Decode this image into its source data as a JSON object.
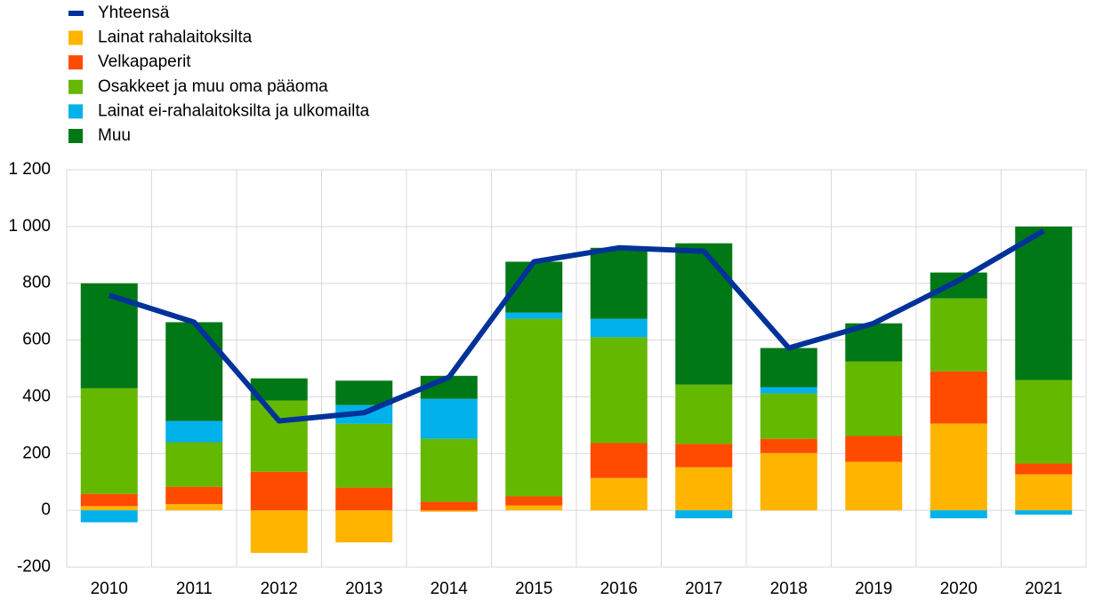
{
  "chart_data": {
    "type": "bar",
    "stacked": true,
    "categories": [
      "2010",
      "2011",
      "2012",
      "2013",
      "2014",
      "2015",
      "2016",
      "2017",
      "2018",
      "2019",
      "2020",
      "2021"
    ],
    "series": [
      {
        "name": "Yhteensä",
        "type": "line",
        "color": "#003299",
        "values": [
          758,
          663,
          315,
          344,
          469,
          876,
          925,
          913,
          572,
          659,
          810,
          985
        ]
      },
      {
        "name": "Lainat rahalaitoksilta",
        "color": "#ffb400",
        "values": [
          15,
          22,
          -150,
          -113,
          -5,
          17,
          114,
          152,
          202,
          171,
          306,
          127
        ]
      },
      {
        "name": "Velkapaperit",
        "color": "#ff4b00",
        "values": [
          43,
          61,
          136,
          80,
          30,
          32,
          123,
          82,
          50,
          91,
          184,
          38
        ]
      },
      {
        "name": "Osakkeet ja muu oma pääoma",
        "color": "#65b800",
        "values": [
          372,
          157,
          251,
          225,
          222,
          626,
          373,
          209,
          160,
          263,
          257,
          294
        ]
      },
      {
        "name": "Lainat ei-rahalaitoksilta ja ulkomailta",
        "color": "#00b1ea",
        "values": [
          -42,
          75,
          0,
          66,
          141,
          22,
          65,
          -28,
          22,
          0,
          -28,
          -15
        ]
      },
      {
        "name": "Muu",
        "color": "#007816",
        "values": [
          370,
          348,
          78,
          86,
          81,
          179,
          250,
          498,
          138,
          134,
          91,
          541
        ]
      }
    ],
    "ylim": [
      -200,
      1200
    ],
    "yticks": [
      -200,
      0,
      200,
      400,
      600,
      800,
      {
        "value": 1000,
        "label": "1 000"
      },
      {
        "value": 1200,
        "label": "1 200"
      }
    ],
    "grid": true,
    "legend": "top-left"
  }
}
